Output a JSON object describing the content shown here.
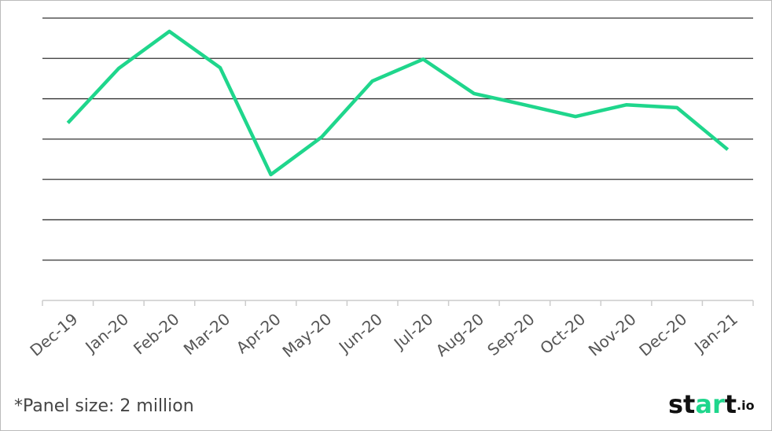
{
  "chart_data": {
    "type": "line",
    "categories": [
      "Dec-19",
      "Jan-20",
      "Feb-20",
      "Mar-20",
      "Apr-20",
      "May-20",
      "Jun-20",
      "Jul-20",
      "Aug-20",
      "Sep-20",
      "Oct-20",
      "Nov-20",
      "Dec-20",
      "Jan-21"
    ],
    "values": [
      4.4,
      5.75,
      6.67,
      5.77,
      3.12,
      4.05,
      5.44,
      5.98,
      5.13,
      4.85,
      4.56,
      4.85,
      4.78,
      3.74
    ],
    "color": "#1fd68c",
    "ylim": [
      0,
      7
    ],
    "yticks": [
      1,
      2,
      3,
      4,
      5,
      6,
      7
    ],
    "grid": true
  },
  "footnote": "*Panel size: 2 million",
  "logo": {
    "parts": [
      "st",
      "ar",
      "t",
      ".io"
    ]
  }
}
